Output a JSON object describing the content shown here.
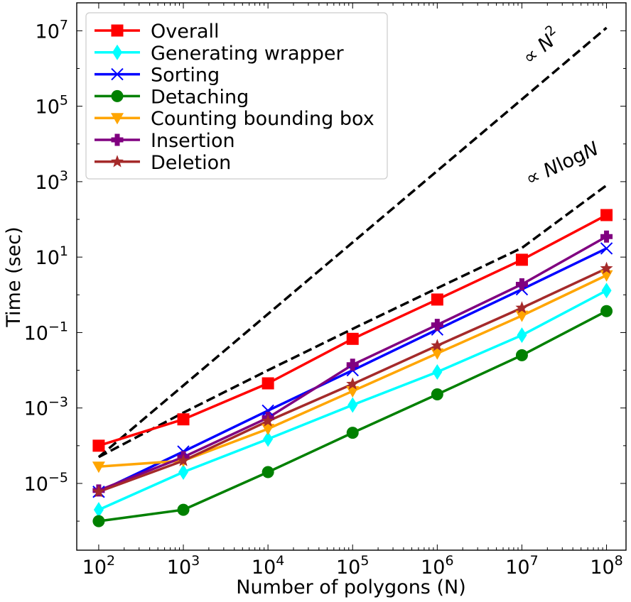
{
  "chart_data": {
    "type": "line",
    "xlabel": "Number of polygons (N)",
    "ylabel": "Time (sec)",
    "xscale": "log",
    "yscale": "log",
    "xlim": [
      55,
      170000000
    ],
    "ylim": [
      1.7e-07,
      55000000
    ],
    "legend_position": "top-left",
    "grid": false,
    "x": [
      100,
      1000,
      10000,
      100000,
      1000000,
      10000000,
      100000000
    ],
    "x_tick_labels": [
      {
        "value": 100,
        "base": "10",
        "exp": "2"
      },
      {
        "value": 1000,
        "base": "10",
        "exp": "3"
      },
      {
        "value": 10000,
        "base": "10",
        "exp": "4"
      },
      {
        "value": 100000,
        "base": "10",
        "exp": "5"
      },
      {
        "value": 1000000,
        "base": "10",
        "exp": "6"
      },
      {
        "value": 10000000,
        "base": "10",
        "exp": "7"
      },
      {
        "value": 100000000,
        "base": "10",
        "exp": "8"
      }
    ],
    "y_tick_labels": [
      {
        "value": 1e-05,
        "base": "10",
        "exp": "−5"
      },
      {
        "value": 0.001,
        "base": "10",
        "exp": "−3"
      },
      {
        "value": 0.1,
        "base": "10",
        "exp": "−1"
      },
      {
        "value": 10,
        "base": "10",
        "exp": "1"
      },
      {
        "value": 1000,
        "base": "10",
        "exp": "3"
      },
      {
        "value": 100000,
        "base": "10",
        "exp": "5"
      },
      {
        "value": 10000000,
        "base": "10",
        "exp": "7"
      }
    ],
    "series": [
      {
        "name": "Overall",
        "color": "#ff0000",
        "marker": "square",
        "values": [
          0.0001,
          0.0005,
          0.0045,
          0.068,
          0.75,
          8.5,
          130
        ]
      },
      {
        "name": "Generating wrapper",
        "color": "#00ffff",
        "marker": "thin_diamond",
        "values": [
          2e-06,
          2e-05,
          0.00015,
          0.0012,
          0.009,
          0.085,
          1.3
        ]
      },
      {
        "name": "Sorting",
        "color": "#0000ff",
        "marker": "x",
        "values": [
          6e-06,
          7e-05,
          0.00085,
          0.01,
          0.12,
          1.4,
          17
        ]
      },
      {
        "name": "Detaching",
        "color": "#008000",
        "marker": "circle",
        "values": [
          1e-06,
          2e-06,
          2e-05,
          0.00022,
          0.0023,
          0.025,
          0.37
        ]
      },
      {
        "name": "Counting bounding box",
        "color": "#ffa500",
        "marker": "triangle_down",
        "values": [
          2.8e-05,
          4e-05,
          0.00028,
          0.0028,
          0.028,
          0.28,
          3.3
        ]
      },
      {
        "name": "Insertion",
        "color": "#800080",
        "marker": "plus_filled",
        "values": [
          6.5e-06,
          5e-05,
          0.00055,
          0.014,
          0.16,
          1.9,
          35
        ]
      },
      {
        "name": "Deletion",
        "color": "#a52a2a",
        "marker": "star",
        "values": [
          6e-06,
          4e-05,
          0.00045,
          0.0043,
          0.045,
          0.45,
          5
        ]
      }
    ],
    "reference_lines": [
      {
        "label_prefix": "∝ ",
        "label_var": "N",
        "label_sup": "2",
        "color": "#000000",
        "style": "dashed",
        "x": [
          100,
          100000000
        ],
        "values": [
          5e-05,
          12000000
        ]
      },
      {
        "label_prefix": "∝ ",
        "label_var": "N",
        "label_mid": "log",
        "label_var2": "N",
        "color": "#000000",
        "style": "dashed",
        "x": [
          100,
          1000,
          10000,
          100000,
          1000000,
          10000000,
          100000000
        ],
        "values": [
          5e-05,
          0.00075,
          0.01,
          0.125,
          1.5,
          17.5,
          800
        ]
      }
    ]
  }
}
